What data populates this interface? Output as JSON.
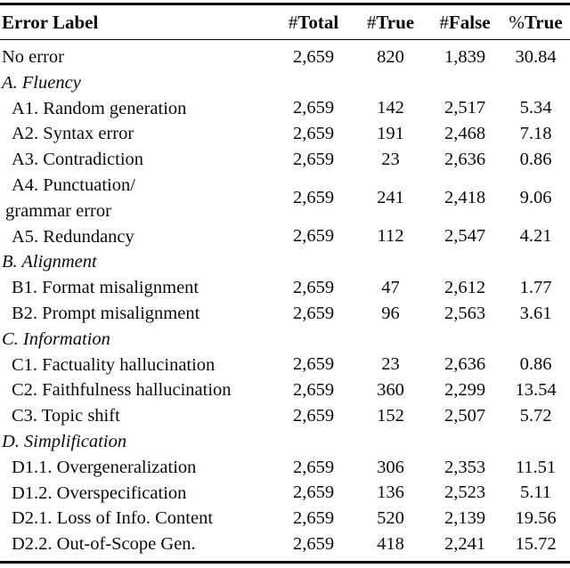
{
  "table": {
    "columns": [
      {
        "prefix": "",
        "label": "Error Label"
      },
      {
        "prefix": "#",
        "label": "Total"
      },
      {
        "prefix": "#",
        "label": "True"
      },
      {
        "prefix": "#",
        "label": "False"
      },
      {
        "prefix": "%",
        "label": "True"
      }
    ],
    "rows": [
      {
        "type": "data",
        "indent": false,
        "label_lines": [
          "No error"
        ],
        "n_total": "2,659",
        "n_true": "820",
        "n_false": "1,839",
        "pct_true": "30.84"
      },
      {
        "type": "section",
        "label_lines": [
          "A. Fluency"
        ]
      },
      {
        "type": "data",
        "indent": true,
        "label_lines": [
          "A1. Random generation"
        ],
        "n_total": "2,659",
        "n_true": "142",
        "n_false": "2,517",
        "pct_true": "5.34"
      },
      {
        "type": "data",
        "indent": true,
        "label_lines": [
          "A2. Syntax error"
        ],
        "n_total": "2,659",
        "n_true": "191",
        "n_false": "2,468",
        "pct_true": "7.18"
      },
      {
        "type": "data",
        "indent": true,
        "label_lines": [
          "A3. Contradiction"
        ],
        "n_total": "2,659",
        "n_true": "23",
        "n_false": "2,636",
        "pct_true": "0.86"
      },
      {
        "type": "data",
        "indent": true,
        "label_lines": [
          "A4. Punctuation/",
          "grammar error"
        ],
        "n_total": "2,659",
        "n_true": "241",
        "n_false": "2,418",
        "pct_true": "9.06"
      },
      {
        "type": "data",
        "indent": true,
        "label_lines": [
          "A5. Redundancy"
        ],
        "n_total": "2,659",
        "n_true": "112",
        "n_false": "2,547",
        "pct_true": "4.21"
      },
      {
        "type": "section",
        "label_lines": [
          "B. Alignment"
        ]
      },
      {
        "type": "data",
        "indent": true,
        "label_lines": [
          "B1. Format misalignment"
        ],
        "n_total": "2,659",
        "n_true": "47",
        "n_false": "2,612",
        "pct_true": "1.77"
      },
      {
        "type": "data",
        "indent": true,
        "label_lines": [
          "B2. Prompt misalignment"
        ],
        "n_total": "2,659",
        "n_true": "96",
        "n_false": "2,563",
        "pct_true": "3.61"
      },
      {
        "type": "section",
        "label_lines": [
          "C. Information"
        ]
      },
      {
        "type": "data",
        "indent": true,
        "label_lines": [
          "C1. Factuality hallucination"
        ],
        "n_total": "2,659",
        "n_true": "23",
        "n_false": "2,636",
        "pct_true": "0.86"
      },
      {
        "type": "data",
        "indent": true,
        "label_lines": [
          "C2. Faithfulness hallucination"
        ],
        "n_total": "2,659",
        "n_true": "360",
        "n_false": "2,299",
        "pct_true": "13.54"
      },
      {
        "type": "data",
        "indent": true,
        "label_lines": [
          "C3. Topic shift"
        ],
        "n_total": "2,659",
        "n_true": "152",
        "n_false": "2,507",
        "pct_true": "5.72"
      },
      {
        "type": "section",
        "label_lines": [
          "D. Simplification"
        ]
      },
      {
        "type": "data",
        "indent": true,
        "label_lines": [
          "D1.1. Overgeneralization"
        ],
        "n_total": "2,659",
        "n_true": "306",
        "n_false": "2,353",
        "pct_true": "11.51"
      },
      {
        "type": "data",
        "indent": true,
        "label_lines": [
          "D1.2. Overspecification"
        ],
        "n_total": "2,659",
        "n_true": "136",
        "n_false": "2,523",
        "pct_true": "5.11"
      },
      {
        "type": "data",
        "indent": true,
        "label_lines": [
          "D2.1. Loss of Info. Content"
        ],
        "n_total": "2,659",
        "n_true": "520",
        "n_false": "2,139",
        "pct_true": "19.56"
      },
      {
        "type": "data",
        "indent": true,
        "label_lines": [
          "D2.2. Out-of-Scope Gen."
        ],
        "n_total": "2,659",
        "n_true": "418",
        "n_false": "2,241",
        "pct_true": "15.72"
      }
    ],
    "colors": {
      "text": "#0b0b0b",
      "rule": "#000000",
      "background": "#ffffff"
    }
  }
}
